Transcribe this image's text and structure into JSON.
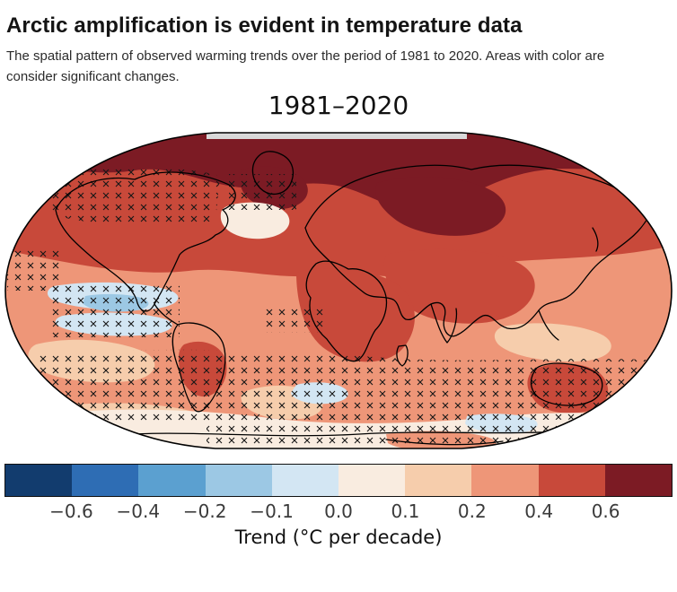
{
  "header": {
    "headline": "Arctic amplification is evident in temperature data",
    "subtitle": "The spatial pattern of observed warming trends over the period of 1981 to 2020. Areas with color are consider significant changes."
  },
  "figure": {
    "map_title": "1981–2020",
    "colorbar": {
      "label": "Trend (°C per decade)",
      "ticks": [
        "−0.6",
        "−0.4",
        "−0.2",
        "−0.1",
        "0.0",
        "0.1",
        "0.2",
        "0.4",
        "0.6"
      ],
      "colors": [
        "#123c6e",
        "#2e6db4",
        "#5ba0d0",
        "#9cc8e4",
        "#d3e6f3",
        "#f9ece0",
        "#f6cdac",
        "#ee9678",
        "#c8493a",
        "#7c1b24"
      ]
    }
  },
  "chart_data": {
    "type": "heatmap",
    "title": "1981–2020",
    "projection": "Robinson world map",
    "variable": "Observed surface temperature warming trend, 1981–2020",
    "units": "°C per decade",
    "colorbar_label": "Trend (°C per decade)",
    "colorbar_tick_values": [
      -0.6,
      -0.4,
      -0.2,
      -0.1,
      0.0,
      0.1,
      0.2,
      0.4,
      0.6
    ],
    "colorbar_colors": [
      "#123c6e",
      "#2e6db4",
      "#5ba0d0",
      "#9cc8e4",
      "#d3e6f3",
      "#f9ece0",
      "#f6cdac",
      "#ee9678",
      "#c8493a",
      "#7c1b24"
    ],
    "hatching": "× stippling over many ocean areas, high-latitude North America, the tropical Atlantic, the Indian Ocean, the Southern Ocean and near Antarctica",
    "regions": [
      {
        "region": "Arctic Ocean and highest northern latitudes",
        "trend_c_per_decade": "> 0.6"
      },
      {
        "region": "Siberia, northern Eurasia, Greenland vicinity, northern Canada",
        "trend_c_per_decade": "0.4 to 0.6"
      },
      {
        "region": "Most continental interiors (Eurasia, Africa/Middle East, Americas, Australia)",
        "trend_c_per_decade": "0.2 to 0.4"
      },
      {
        "region": "Most ocean areas at low and mid latitudes",
        "trend_c_per_decade": "0.1 to 0.2"
      },
      {
        "region": "North Atlantic south of Greenland, parts of Southern Ocean and Antarctica",
        "trend_c_per_decade": "0.0 to 0.1"
      },
      {
        "region": "Patches of the North Pacific and Southern Ocean near Antarctica",
        "trend_c_per_decade": "-0.2 to 0.0"
      }
    ]
  }
}
